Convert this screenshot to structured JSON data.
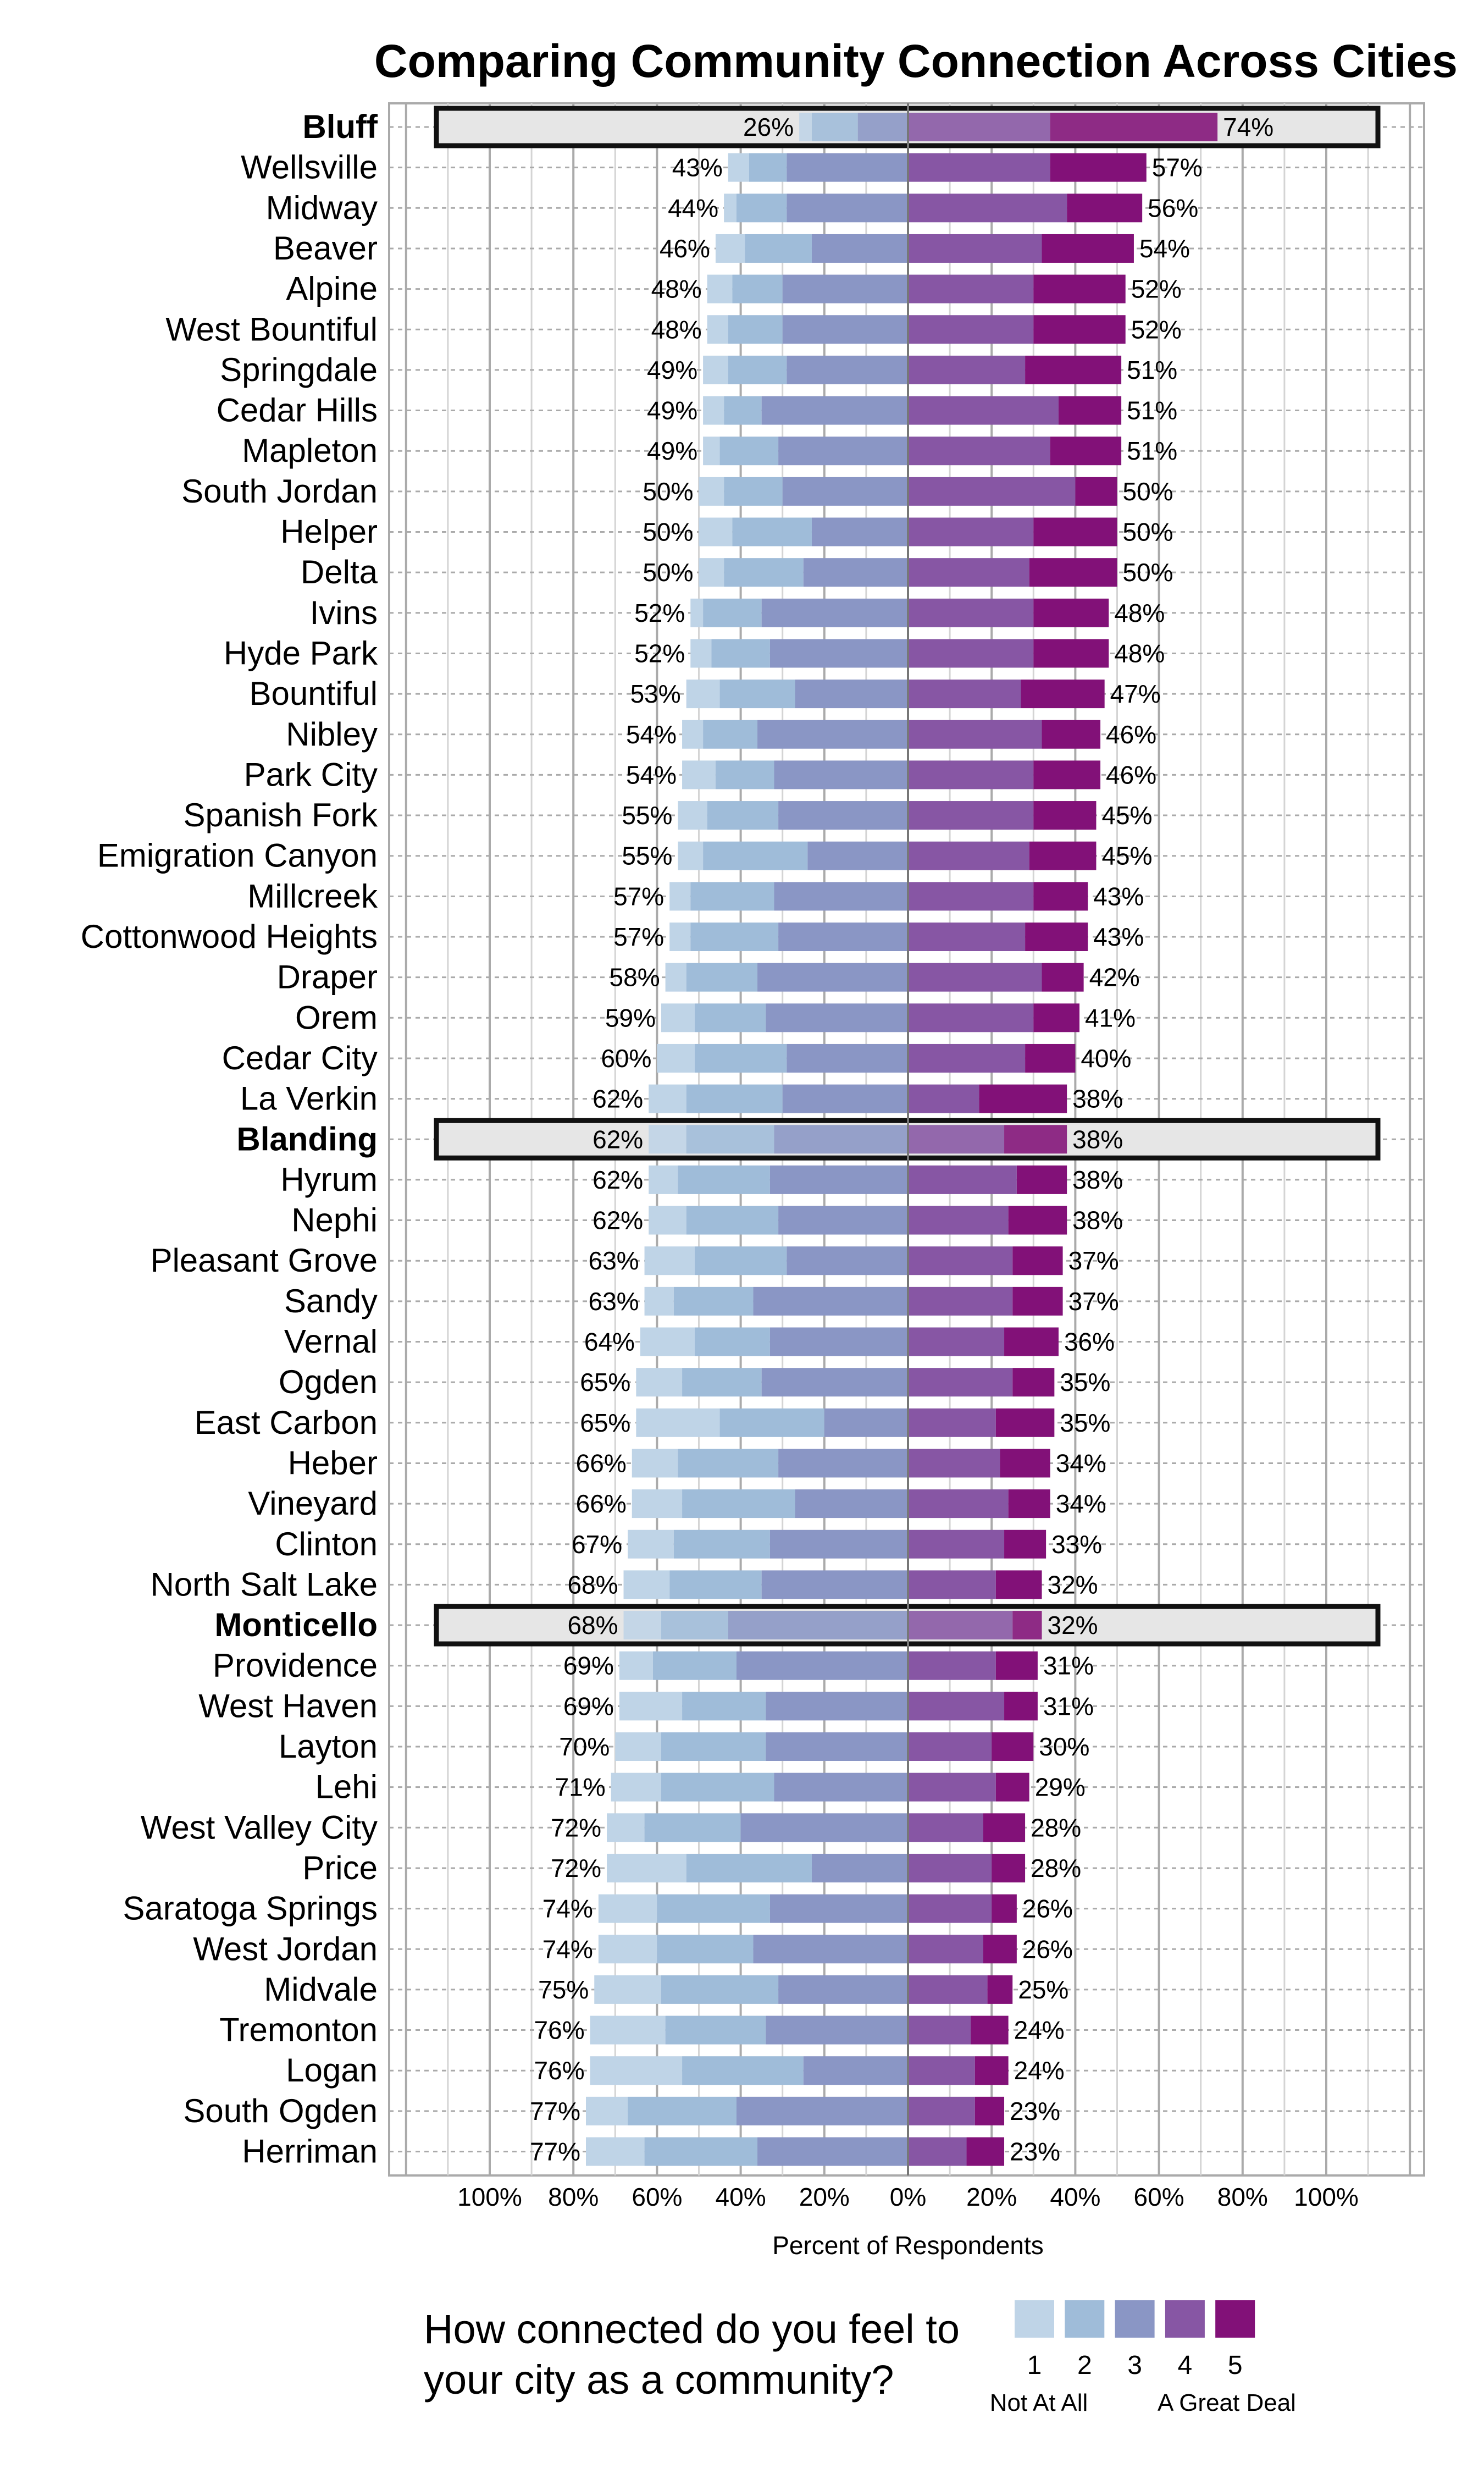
{
  "chart_data": {
    "type": "bar",
    "orientation": "horizontal",
    "stacked": "diverging",
    "title": "Comparing Community Connection Across Cities",
    "xlabel": "Percent of Respondents",
    "xlim": [
      -100,
      100
    ],
    "x_ticks": [
      -100,
      -80,
      -60,
      -40,
      -20,
      0,
      20,
      40,
      60,
      80,
      100
    ],
    "x_tick_labels": [
      "100%",
      "80%",
      "60%",
      "40%",
      "20%",
      "0%",
      "20%",
      "40%",
      "60%",
      "80%",
      "100%"
    ],
    "grid": true,
    "legend": {
      "title": [
        "How connected do you feel to",
        "your city as a community?"
      ],
      "placement": "bottom",
      "categories": [
        "1",
        "2",
        "3",
        "4",
        "5"
      ],
      "low_anchor": "Not At All",
      "high_anchor": "A Great Deal"
    },
    "colors": [
      "#bfd4e7",
      "#9fbcd9",
      "#8a96c5",
      "#8756a4",
      "#821178"
    ],
    "rows": [
      {
        "city": "Bluff",
        "values": [
          3,
          11,
          12,
          34,
          40
        ],
        "left": "26%",
        "right": "74%",
        "highlight": true
      },
      {
        "city": "Wellsville",
        "values": [
          5,
          9,
          29,
          34,
          23
        ],
        "left": "43%",
        "right": "57%"
      },
      {
        "city": "Midway",
        "values": [
          3,
          12,
          29,
          38,
          18
        ],
        "left": "44%",
        "right": "56%"
      },
      {
        "city": "Beaver",
        "values": [
          7,
          16,
          23,
          32,
          22
        ],
        "left": "46%",
        "right": "54%"
      },
      {
        "city": "Alpine",
        "values": [
          6,
          12,
          30,
          30,
          22
        ],
        "left": "48%",
        "right": "52%"
      },
      {
        "city": "West Bountiful",
        "values": [
          5,
          13,
          30,
          30,
          22
        ],
        "left": "48%",
        "right": "52%"
      },
      {
        "city": "Springdale",
        "values": [
          6,
          14,
          29,
          28,
          23
        ],
        "left": "49%",
        "right": "51%"
      },
      {
        "city": "Cedar Hills",
        "values": [
          5,
          9,
          35,
          36,
          15
        ],
        "left": "49%",
        "right": "51%"
      },
      {
        "city": "Mapleton",
        "values": [
          4,
          14,
          31,
          34,
          17
        ],
        "left": "49%",
        "right": "51%"
      },
      {
        "city": "South Jordan",
        "values": [
          6,
          14,
          30,
          40,
          10
        ],
        "left": "50%",
        "right": "50%"
      },
      {
        "city": "Helper",
        "values": [
          8,
          19,
          23,
          30,
          20
        ],
        "left": "50%",
        "right": "50%"
      },
      {
        "city": "Delta",
        "values": [
          6,
          19,
          25,
          29,
          21
        ],
        "left": "50%",
        "right": "50%"
      },
      {
        "city": "Ivins",
        "values": [
          3,
          14,
          35,
          30,
          18
        ],
        "left": "52%",
        "right": "48%"
      },
      {
        "city": "Hyde Park",
        "values": [
          5,
          14,
          33,
          30,
          18
        ],
        "left": "52%",
        "right": "48%"
      },
      {
        "city": "Bountiful",
        "values": [
          8,
          18,
          27,
          27,
          20
        ],
        "left": "53%",
        "right": "47%"
      },
      {
        "city": "Nibley",
        "values": [
          5,
          13,
          36,
          32,
          14
        ],
        "left": "54%",
        "right": "46%"
      },
      {
        "city": "Park City",
        "values": [
          8,
          14,
          32,
          30,
          16
        ],
        "left": "54%",
        "right": "46%"
      },
      {
        "city": "Spanish Fork",
        "values": [
          7,
          17,
          31,
          30,
          15
        ],
        "left": "55%",
        "right": "45%"
      },
      {
        "city": "Emigration Canyon",
        "values": [
          6,
          25,
          24,
          29,
          16
        ],
        "left": "55%",
        "right": "45%"
      },
      {
        "city": "Millcreek",
        "values": [
          5,
          20,
          32,
          30,
          13
        ],
        "left": "57%",
        "right": "43%"
      },
      {
        "city": "Cottonwood Heights",
        "values": [
          5,
          21,
          31,
          28,
          15
        ],
        "left": "57%",
        "right": "43%"
      },
      {
        "city": "Draper",
        "values": [
          5,
          17,
          36,
          32,
          10
        ],
        "left": "58%",
        "right": "42%"
      },
      {
        "city": "Orem",
        "values": [
          8,
          17,
          34,
          30,
          11
        ],
        "left": "59%",
        "right": "41%"
      },
      {
        "city": "Cedar City",
        "values": [
          9,
          22,
          29,
          28,
          12
        ],
        "left": "60%",
        "right": "40%"
      },
      {
        "city": "La Verkin",
        "values": [
          9,
          23,
          30,
          17,
          21
        ],
        "left": "62%",
        "right": "38%"
      },
      {
        "city": "Blanding",
        "values": [
          9,
          21,
          32,
          23,
          15
        ],
        "left": "62%",
        "right": "38%",
        "highlight": true
      },
      {
        "city": "Hyrum",
        "values": [
          7,
          22,
          33,
          26,
          12
        ],
        "left": "62%",
        "right": "38%"
      },
      {
        "city": "Nephi",
        "values": [
          9,
          22,
          31,
          24,
          14
        ],
        "left": "62%",
        "right": "38%"
      },
      {
        "city": "Pleasant Grove",
        "values": [
          12,
          22,
          29,
          25,
          12
        ],
        "left": "63%",
        "right": "37%"
      },
      {
        "city": "Sandy",
        "values": [
          7,
          19,
          37,
          25,
          12
        ],
        "left": "63%",
        "right": "37%"
      },
      {
        "city": "Vernal",
        "values": [
          13,
          18,
          33,
          23,
          13
        ],
        "left": "64%",
        "right": "36%"
      },
      {
        "city": "Ogden",
        "values": [
          11,
          19,
          35,
          25,
          10
        ],
        "left": "65%",
        "right": "35%"
      },
      {
        "city": "East Carbon",
        "values": [
          20,
          25,
          20,
          21,
          14
        ],
        "left": "65%",
        "right": "35%"
      },
      {
        "city": "Heber",
        "values": [
          11,
          24,
          31,
          22,
          12
        ],
        "left": "66%",
        "right": "34%"
      },
      {
        "city": "Vineyard",
        "values": [
          12,
          27,
          27,
          24,
          10
        ],
        "left": "66%",
        "right": "34%"
      },
      {
        "city": "Clinton",
        "values": [
          11,
          23,
          33,
          23,
          10
        ],
        "left": "67%",
        "right": "33%"
      },
      {
        "city": "North Salt Lake",
        "values": [
          11,
          22,
          35,
          21,
          11
        ],
        "left": "68%",
        "right": "32%"
      },
      {
        "city": "Monticello",
        "values": [
          9,
          16,
          43,
          25,
          7
        ],
        "left": "68%",
        "right": "32%",
        "highlight": true
      },
      {
        "city": "Providence",
        "values": [
          8,
          20,
          41,
          21,
          10
        ],
        "left": "69%",
        "right": "31%"
      },
      {
        "city": "West Haven",
        "values": [
          15,
          20,
          34,
          23,
          8
        ],
        "left": "69%",
        "right": "31%"
      },
      {
        "city": "Layton",
        "values": [
          11,
          25,
          34,
          20,
          10
        ],
        "left": "70%",
        "right": "30%"
      },
      {
        "city": "Lehi",
        "values": [
          12,
          27,
          32,
          21,
          8
        ],
        "left": "71%",
        "right": "29%"
      },
      {
        "city": "West Valley City",
        "values": [
          9,
          23,
          40,
          18,
          10
        ],
        "left": "72%",
        "right": "28%"
      },
      {
        "city": "Price",
        "values": [
          19,
          30,
          23,
          20,
          8
        ],
        "left": "72%",
        "right": "28%"
      },
      {
        "city": "Saratoga Springs",
        "values": [
          14,
          27,
          33,
          20,
          6
        ],
        "left": "74%",
        "right": "26%"
      },
      {
        "city": "West Jordan",
        "values": [
          14,
          23,
          37,
          18,
          8
        ],
        "left": "74%",
        "right": "26%"
      },
      {
        "city": "Midvale",
        "values": [
          16,
          28,
          31,
          19,
          6
        ],
        "left": "75%",
        "right": "25%"
      },
      {
        "city": "Tremonton",
        "values": [
          18,
          24,
          34,
          15,
          9
        ],
        "left": "76%",
        "right": "24%"
      },
      {
        "city": "Logan",
        "values": [
          22,
          29,
          25,
          16,
          8
        ],
        "left": "76%",
        "right": "24%"
      },
      {
        "city": "South Ogden",
        "values": [
          10,
          26,
          41,
          16,
          7
        ],
        "left": "77%",
        "right": "23%"
      },
      {
        "city": "Herriman",
        "values": [
          14,
          27,
          36,
          14,
          9
        ],
        "left": "77%",
        "right": "23%"
      }
    ]
  }
}
